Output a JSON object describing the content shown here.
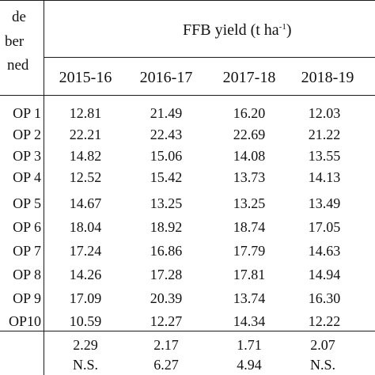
{
  "table": {
    "left_header_lines": [
      "de",
      "ber",
      "ned"
    ],
    "main_header_text": "FFB yield (t ha",
    "main_header_sup": "-1",
    "main_header_close": ")",
    "years": [
      "2015-16",
      "2016-17",
      "2017-18",
      "2018-19"
    ],
    "rows": [
      {
        "label": "OP 1",
        "values": [
          "12.81",
          "21.49",
          "16.20",
          "12.03"
        ]
      },
      {
        "label": "OP 2",
        "values": [
          "22.21",
          "22.43",
          "22.69",
          "21.22"
        ]
      },
      {
        "label": "OP 3",
        "values": [
          "14.82",
          "15.06",
          "14.08",
          "13.55"
        ]
      },
      {
        "label": "OP 4",
        "values": [
          "12.52",
          "15.42",
          "13.73",
          "14.13"
        ]
      },
      {
        "label": "OP 5",
        "values": [
          "14.67",
          "13.25",
          "13.25",
          "13.49"
        ]
      },
      {
        "label": "OP 6",
        "values": [
          "18.04",
          "18.92",
          "18.74",
          "17.05"
        ]
      },
      {
        "label": "OP 7",
        "values": [
          "17.24",
          "16.86",
          "17.79",
          "14.63"
        ]
      },
      {
        "label": "OP 8",
        "values": [
          "14.26",
          "17.28",
          "17.81",
          "14.94"
        ]
      },
      {
        "label": "OP 9",
        "values": [
          "17.09",
          "20.39",
          "13.74",
          "16.30"
        ]
      },
      {
        "label": "OP10",
        "values": [
          "10.59",
          "12.27",
          "14.34",
          "12.22"
        ]
      }
    ],
    "footer_rows": [
      {
        "values": [
          "2.29",
          "2.17",
          "1.71",
          "2.07"
        ]
      },
      {
        "values": [
          "N.S.",
          "6.27",
          "4.94",
          "N.S."
        ]
      }
    ]
  }
}
